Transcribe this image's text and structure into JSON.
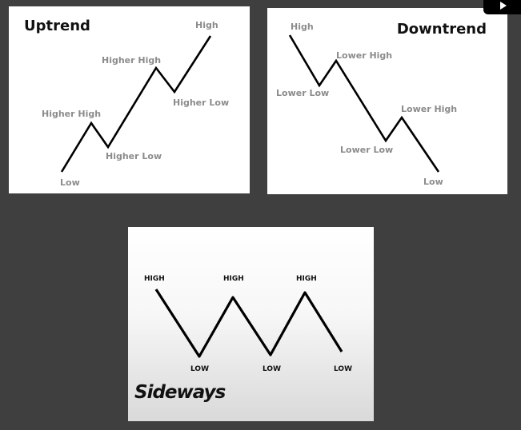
{
  "uptrend": {
    "title": "Uptrend",
    "labels": [
      "Low",
      "Higher High",
      "Higher Low",
      "Higher High",
      "Higher Low",
      "High"
    ]
  },
  "downtrend": {
    "title": "Downtrend",
    "labels": [
      "High",
      "Lower Low",
      "Lower High",
      "Lower Low",
      "Lower High",
      "Low"
    ]
  },
  "sideways": {
    "title": "Sideways",
    "labels": [
      "HIGH",
      "LOW",
      "HIGH",
      "LOW",
      "HIGH",
      "LOW"
    ]
  },
  "colors": {
    "background": "#3f3f3f",
    "panel": "#ffffff",
    "line": "#000000",
    "label": "#8c8c8c"
  },
  "icons": {
    "play": "play-icon"
  }
}
